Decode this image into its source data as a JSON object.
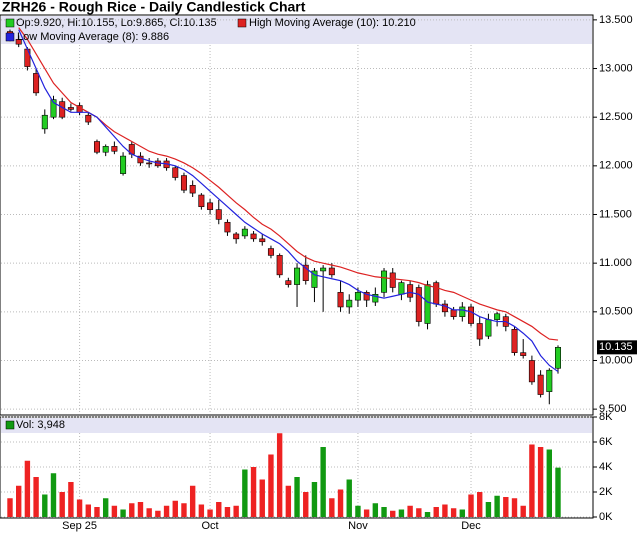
{
  "chart_data": [
    {
      "type": "candlestick",
      "title": "ZRH26 - Rough Rice - Daily Candlestick Chart",
      "ohlc_label": "Op:9.920, Hi:10.155, Lo:9.865, Cl:10.135",
      "last_price_label": "10.135",
      "up_color": "#22cc22",
      "down_color": "#dd2222",
      "open": [
        13.38,
        13.3,
        13.2,
        12.95,
        12.38,
        12.5,
        12.66,
        12.6,
        12.62,
        12.52,
        12.25,
        12.14,
        12.2,
        11.92,
        12.22,
        12.1,
        12.03,
        12.05,
        12.05,
        11.98,
        11.9,
        11.8,
        11.7,
        11.62,
        11.55,
        11.42,
        11.3,
        11.28,
        11.3,
        11.25,
        11.15,
        11.08,
        10.82,
        10.78,
        10.98,
        10.75,
        10.92,
        10.95,
        10.7,
        10.55,
        10.62,
        10.7,
        10.6,
        10.7,
        10.9,
        10.68,
        10.78,
        10.75,
        10.38,
        10.8,
        10.58,
        10.52,
        10.45,
        10.55,
        10.38,
        10.25,
        10.42,
        10.45,
        10.32,
        10.08,
        10.0,
        9.85,
        9.68,
        9.92
      ],
      "high": [
        13.4,
        13.34,
        13.22,
        13.0,
        12.58,
        12.72,
        12.7,
        12.64,
        12.65,
        12.55,
        12.27,
        12.22,
        12.25,
        12.14,
        12.25,
        12.14,
        12.08,
        12.08,
        12.08,
        12.0,
        11.93,
        11.85,
        11.72,
        11.66,
        11.65,
        11.45,
        11.32,
        11.38,
        11.33,
        11.3,
        11.18,
        11.1,
        10.85,
        11.0,
        11.08,
        10.95,
        10.98,
        11.0,
        10.82,
        10.68,
        10.75,
        10.72,
        10.75,
        10.95,
        10.95,
        10.82,
        10.82,
        10.78,
        10.82,
        10.82,
        10.62,
        10.55,
        10.6,
        10.58,
        10.45,
        10.48,
        10.5,
        10.48,
        10.35,
        10.22,
        10.05,
        9.9,
        9.92,
        10.155
      ],
      "low": [
        13.28,
        13.22,
        12.98,
        12.72,
        12.33,
        12.48,
        12.48,
        12.56,
        12.52,
        12.42,
        12.12,
        12.1,
        12.12,
        11.9,
        12.08,
        12.0,
        11.98,
        11.98,
        11.95,
        11.85,
        11.72,
        11.68,
        11.55,
        11.5,
        11.4,
        11.28,
        11.2,
        11.25,
        11.22,
        11.18,
        11.05,
        10.85,
        10.75,
        10.55,
        10.78,
        10.6,
        10.5,
        10.85,
        10.5,
        10.48,
        10.55,
        10.55,
        10.56,
        10.65,
        10.7,
        10.62,
        10.6,
        10.35,
        10.32,
        10.55,
        10.45,
        10.42,
        10.4,
        10.35,
        10.15,
        10.22,
        10.35,
        10.3,
        10.05,
        10.02,
        9.75,
        9.62,
        9.55,
        9.865
      ],
      "close": [
        13.3,
        13.25,
        13.02,
        12.75,
        12.52,
        12.68,
        12.5,
        12.58,
        12.55,
        12.45,
        12.14,
        12.2,
        12.15,
        12.1,
        12.12,
        12.03,
        12.02,
        12.0,
        11.98,
        11.88,
        11.75,
        11.72,
        11.58,
        11.55,
        11.45,
        11.32,
        11.25,
        11.35,
        11.25,
        11.22,
        11.08,
        10.88,
        10.78,
        10.95,
        10.82,
        10.92,
        10.95,
        10.88,
        10.55,
        10.62,
        10.7,
        10.62,
        10.68,
        10.92,
        10.75,
        10.8,
        10.65,
        10.4,
        10.78,
        10.58,
        10.5,
        10.45,
        10.55,
        10.38,
        10.22,
        10.42,
        10.48,
        10.35,
        10.08,
        10.05,
        9.78,
        9.65,
        9.9,
        10.135
      ],
      "series": [
        {
          "name": "High Moving Average (10): 10.210",
          "color": "#dd2222",
          "values": [
            null,
            13.42,
            13.3,
            13.15,
            13.0,
            12.85,
            12.75,
            12.65,
            12.6,
            12.55,
            12.5,
            12.42,
            12.35,
            12.3,
            12.25,
            12.2,
            12.15,
            12.12,
            12.1,
            12.07,
            12.03,
            11.98,
            11.92,
            11.85,
            11.78,
            11.7,
            11.62,
            11.55,
            11.47,
            11.4,
            11.35,
            11.28,
            11.2,
            11.12,
            11.06,
            11.02,
            11.0,
            10.98,
            10.96,
            10.93,
            10.9,
            10.88,
            10.86,
            10.85,
            10.84,
            10.83,
            10.82,
            10.8,
            10.77,
            10.75,
            10.72,
            10.7,
            10.66,
            10.62,
            10.58,
            10.55,
            10.52,
            10.5,
            10.45,
            10.4,
            10.35,
            10.28,
            10.22,
            10.21
          ]
        },
        {
          "name": "Low Moving Average (8): 9.886",
          "color": "#2222dd",
          "values": [
            null,
            13.4,
            13.2,
            13.0,
            12.8,
            12.65,
            12.6,
            12.55,
            12.55,
            12.55,
            12.5,
            12.4,
            12.3,
            12.2,
            12.12,
            12.08,
            12.05,
            12.03,
            12.02,
            12.0,
            11.96,
            11.9,
            11.82,
            11.74,
            11.66,
            11.58,
            11.5,
            11.42,
            11.36,
            11.3,
            11.25,
            11.2,
            11.12,
            11.02,
            10.95,
            10.88,
            10.86,
            10.84,
            10.82,
            10.78,
            10.72,
            10.68,
            10.66,
            10.64,
            10.66,
            10.68,
            10.7,
            10.68,
            10.6,
            10.58,
            10.56,
            10.52,
            10.52,
            10.5,
            10.45,
            10.42,
            10.4,
            10.4,
            10.35,
            10.28,
            10.2,
            10.05,
            9.95,
            9.886
          ]
        }
      ],
      "ylim": [
        9.45,
        13.55
      ],
      "yticks": [
        {
          "value": 9.5,
          "label": "9.500"
        },
        {
          "value": 10,
          "label": "10.000"
        },
        {
          "value": 10.5,
          "label": "10.500"
        },
        {
          "value": 11,
          "label": "11.000"
        },
        {
          "value": 11.5,
          "label": "11.500"
        },
        {
          "value": 12,
          "label": "12.000"
        },
        {
          "value": 12.5,
          "label": "12.500"
        },
        {
          "value": 13,
          "label": "13.000"
        },
        {
          "value": 13.5,
          "label": "13.500"
        }
      ],
      "grid": true
    },
    {
      "type": "bar",
      "legend_label": "Vol: 3,948",
      "categories": [
        null,
        null,
        null,
        null,
        null,
        null,
        null,
        null,
        "Sep 25",
        null,
        null,
        null,
        null,
        null,
        null,
        null,
        null,
        null,
        null,
        null,
        null,
        null,
        null,
        "Oct",
        null,
        null,
        null,
        null,
        null,
        null,
        null,
        null,
        null,
        null,
        null,
        null,
        null,
        null,
        null,
        null,
        "Nov",
        null,
        null,
        null,
        null,
        null,
        null,
        null,
        null,
        null,
        null,
        null,
        null,
        "Dec",
        null,
        null,
        null,
        null,
        null,
        null,
        null,
        null,
        null,
        null
      ],
      "values": [
        1500,
        2500,
        4500,
        3200,
        1800,
        3500,
        2000,
        2800,
        1400,
        1000,
        800,
        1500,
        900,
        600,
        1100,
        1200,
        700,
        500,
        900,
        1300,
        1100,
        2500,
        1000,
        600,
        1200,
        800,
        900,
        3800,
        4000,
        3000,
        5000,
        6700,
        2500,
        3200,
        2000,
        2800,
        5600,
        1500,
        2200,
        3000,
        900,
        600,
        1100,
        800,
        500,
        600,
        900,
        700,
        400,
        800,
        1000,
        700,
        600,
        1800,
        2000,
        1200,
        1700,
        1600,
        1500,
        900,
        5800,
        5600,
        5400,
        3948
      ],
      "ylim": [
        0,
        8000
      ],
      "yticks": [
        {
          "value": 0,
          "label": "0K"
        },
        {
          "value": 2000,
          "label": "2K"
        },
        {
          "value": 4000,
          "label": "4K"
        },
        {
          "value": 6000,
          "label": "6K"
        },
        {
          "value": 8000,
          "label": "8K"
        }
      ],
      "grid": true
    }
  ]
}
